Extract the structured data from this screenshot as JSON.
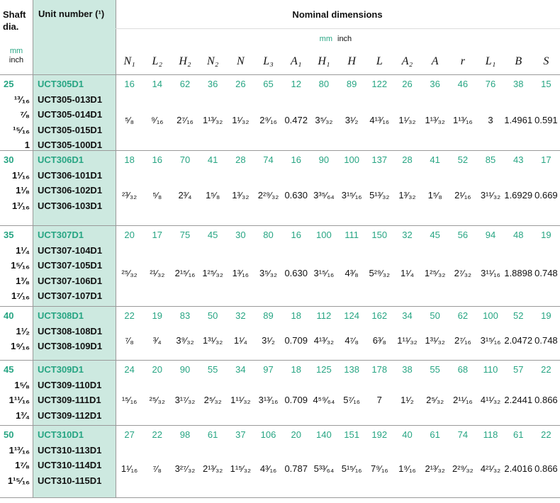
{
  "header": {
    "shaft": "Shaft dia.",
    "shaft_mm": "mm",
    "shaft_inch": "inch",
    "unit": "Unit number (¹)",
    "nominal": "Nominal dimensions",
    "nominal_mm": "mm",
    "nominal_inch": "inch",
    "columns": [
      "N₁",
      "L₂",
      "H₂",
      "N₂",
      "N",
      "L₃",
      "A₁",
      "H₁",
      "H",
      "L",
      "A₂",
      "A",
      "r",
      "L₁",
      "B",
      "S"
    ]
  },
  "groups": [
    {
      "shaft_mm": 25,
      "shaft_inch": [
        "¹³⁄₁₆",
        "⁷⁄₈",
        "¹⁵⁄₁₆",
        "1"
      ],
      "units": [
        "UCT305D1",
        "UCT305-013D1",
        "UCT305-014D1",
        "UCT305-015D1",
        "UCT305-100D1"
      ],
      "mm": [
        16,
        14,
        62,
        36,
        26,
        65,
        12,
        80,
        89,
        122,
        26,
        36,
        46,
        76,
        38,
        15
      ],
      "inch": [
        "⁵⁄₈",
        "⁹⁄₁₆",
        "2⁷⁄₁₆",
        "1¹³⁄₃₂",
        "1¹⁄₃₂",
        "2⁹⁄₁₆",
        "0.472",
        "3⁵⁄₃₂",
        "3¹⁄₂",
        "4¹³⁄₁₆",
        "1¹⁄₃₂",
        "1¹³⁄₃₂",
        "1¹³⁄₁₆",
        "3",
        "1.4961",
        "0.591"
      ]
    },
    {
      "shaft_mm": 30,
      "shaft_inch": [
        "1¹⁄₁₆",
        "1¹⁄₈",
        "1³⁄₁₆"
      ],
      "units": [
        "UCT306D1",
        "UCT306-101D1",
        "UCT306-102D1",
        "UCT306-103D1"
      ],
      "mm": [
        18,
        16,
        70,
        41,
        28,
        74,
        16,
        90,
        100,
        137,
        28,
        41,
        52,
        85,
        43,
        17
      ],
      "inch": [
        "²³⁄₃₂",
        "⁵⁄₈",
        "2³⁄₄",
        "1⁵⁄₈",
        "1³⁄₃₂",
        "2²⁹⁄₃₂",
        "0.630",
        "3³⁵⁄₆₄",
        "3¹⁵⁄₁₆",
        "5¹³⁄₃₂",
        "1³⁄₃₂",
        "1⁵⁄₈",
        "2¹⁄₁₆",
        "3¹¹⁄₃₂",
        "1.6929",
        "0.669"
      ]
    },
    {
      "shaft_mm": 35,
      "shaft_inch": [
        "1¹⁄₄",
        "1⁵⁄₁₆",
        "1³⁄₈",
        "1⁷⁄₁₆"
      ],
      "units": [
        "UCT307D1",
        "UCT307-104D1",
        "UCT307-105D1",
        "UCT307-106D1",
        "UCT307-107D1"
      ],
      "mm": [
        20,
        17,
        75,
        45,
        30,
        80,
        16,
        100,
        111,
        150,
        32,
        45,
        56,
        94,
        48,
        19
      ],
      "inch": [
        "²⁵⁄₃₂",
        "²¹⁄₃₂",
        "2¹⁵⁄₁₆",
        "1²⁵⁄₃₂",
        "1³⁄₁₆",
        "3⁵⁄₃₂",
        "0.630",
        "3¹⁵⁄₁₆",
        "4³⁄₈",
        "5²⁹⁄₃₂",
        "1¹⁄₄",
        "1²⁵⁄₃₂",
        "2⁷⁄₃₂",
        "3¹¹⁄₁₆",
        "1.8898",
        "0.748"
      ]
    },
    {
      "shaft_mm": 40,
      "shaft_inch": [
        "1¹⁄₂",
        "1⁹⁄₁₆"
      ],
      "units": [
        "UCT308D1",
        "UCT308-108D1",
        "UCT308-109D1"
      ],
      "mm": [
        22,
        19,
        83,
        50,
        32,
        89,
        18,
        112,
        124,
        162,
        34,
        50,
        62,
        100,
        52,
        19
      ],
      "inch": [
        "⁷⁄₈",
        "³⁄₄",
        "3⁹⁄₃₂",
        "1³¹⁄₃₂",
        "1¹⁄₄",
        "3¹⁄₂",
        "0.709",
        "4¹³⁄₃₂",
        "4⁷⁄₈",
        "6³⁄₈",
        "1¹¹⁄₃₂",
        "1³¹⁄₃₂",
        "2⁷⁄₁₆",
        "3¹⁵⁄₁₆",
        "2.0472",
        "0.748"
      ]
    },
    {
      "shaft_mm": 45,
      "shaft_inch": [
        "1⁵⁄₈",
        "1¹¹⁄₁₆",
        "1³⁄₄"
      ],
      "units": [
        "UCT309D1",
        "UCT309-110D1",
        "UCT309-111D1",
        "UCT309-112D1"
      ],
      "mm": [
        24,
        20,
        90,
        55,
        34,
        97,
        18,
        125,
        138,
        178,
        38,
        55,
        68,
        110,
        57,
        22
      ],
      "inch": [
        "¹⁵⁄₁₆",
        "²⁵⁄₃₂",
        "3¹⁷⁄₃₂",
        "2⁵⁄₃₂",
        "1¹¹⁄₃₂",
        "3¹³⁄₁₆",
        "0.709",
        "4⁵⁹⁄₆₄",
        "5⁷⁄₁₆",
        "7",
        "1¹⁄₂",
        "2⁵⁄₃₂",
        "2¹¹⁄₁₆",
        "4¹¹⁄₃₂",
        "2.2441",
        "0.866"
      ]
    },
    {
      "shaft_mm": 50,
      "shaft_inch": [
        "1¹³⁄₁₆",
        "1⁷⁄₈",
        "1¹⁵⁄₁₆"
      ],
      "units": [
        "UCT310D1",
        "UCT310-113D1",
        "UCT310-114D1",
        "UCT310-115D1"
      ],
      "mm": [
        27,
        22,
        98,
        61,
        37,
        106,
        20,
        140,
        151,
        192,
        40,
        61,
        74,
        118,
        61,
        22
      ],
      "inch": [
        "1¹⁄₁₆",
        "⁷⁄₈",
        "3²⁷⁄₃₂",
        "2¹³⁄₃₂",
        "1¹⁵⁄₃₂",
        "4³⁄₁₆",
        "0.787",
        "5³³⁄₆₄",
        "5¹⁵⁄₁₆",
        "7⁹⁄₁₆",
        "1⁹⁄₁₆",
        "2¹³⁄₃₂",
        "2²⁹⁄₃₂",
        "4²¹⁄₃₂",
        "2.4016",
        "0.866"
      ]
    }
  ]
}
